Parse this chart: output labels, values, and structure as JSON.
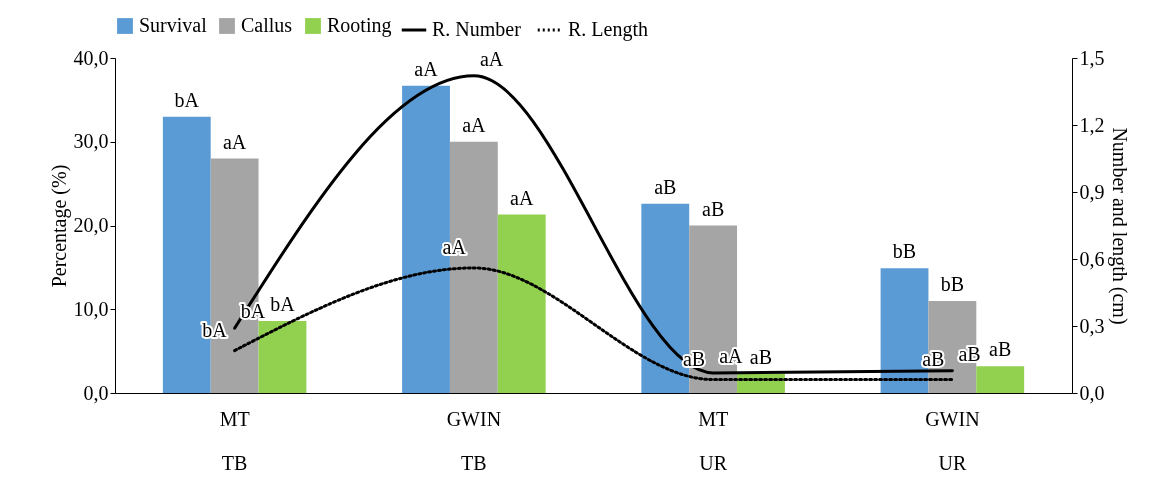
{
  "chart_data": {
    "type": "bar",
    "categories": [
      "MT\nTB",
      "GWIN\nTB",
      "MT\nUR",
      "GWIN\nUR"
    ],
    "ylabel": "Percentage (%)",
    "y2label": "Number and length (cm)",
    "ylim": [
      0,
      40
    ],
    "yticks": [
      {
        "value": 0,
        "label": "0,0"
      },
      {
        "value": 10,
        "label": "10,0"
      },
      {
        "value": 20,
        "label": "20,0"
      },
      {
        "value": 30,
        "label": "30,0"
      },
      {
        "value": 40,
        "label": "40,0"
      }
    ],
    "y2lim": [
      0,
      1.5
    ],
    "y2ticks": [
      {
        "value": 0,
        "label": "0,0"
      },
      {
        "value": 0.3,
        "label": "0,3"
      },
      {
        "value": 0.6,
        "label": "0,6"
      },
      {
        "value": 0.9,
        "label": "0,9"
      },
      {
        "value": 1.2,
        "label": "1,2"
      },
      {
        "value": 1.5,
        "label": "1,5"
      }
    ],
    "legend": "top",
    "grid": false,
    "series": [
      {
        "name": "Survival",
        "color": "#5b9bd5",
        "values": [
          33.0,
          36.7,
          22.6,
          14.9
        ],
        "value_labels": [
          "bA",
          "aA",
          "aB",
          "bB"
        ]
      },
      {
        "name": "Callus",
        "color": "#a5a5a5",
        "values": [
          28.0,
          30.0,
          20.0,
          11.0
        ],
        "value_labels": [
          "aA",
          "aA",
          "aB",
          "bB"
        ]
      },
      {
        "name": "Rooting",
        "color": "#92d050",
        "values": [
          8.6,
          21.3,
          2.3,
          3.2
        ],
        "value_labels": [
          "bA",
          "aA",
          "aB",
          "aB"
        ]
      },
      {
        "name": "R. Number",
        "type": "line",
        "axis": "y2",
        "color": "#000000",
        "line_style": "solid",
        "values": [
          0.29,
          1.42,
          0.09,
          0.1
        ],
        "value_labels": [
          "bA",
          "aA",
          "aA",
          "aB"
        ]
      },
      {
        "name": "R. Length",
        "type": "line",
        "axis": "y2",
        "color": "#000000",
        "line_style": "dotted",
        "values": [
          0.19,
          0.56,
          0.06,
          0.06
        ],
        "value_labels": [
          "bA",
          "aA",
          "aB",
          "aB"
        ]
      }
    ]
  }
}
